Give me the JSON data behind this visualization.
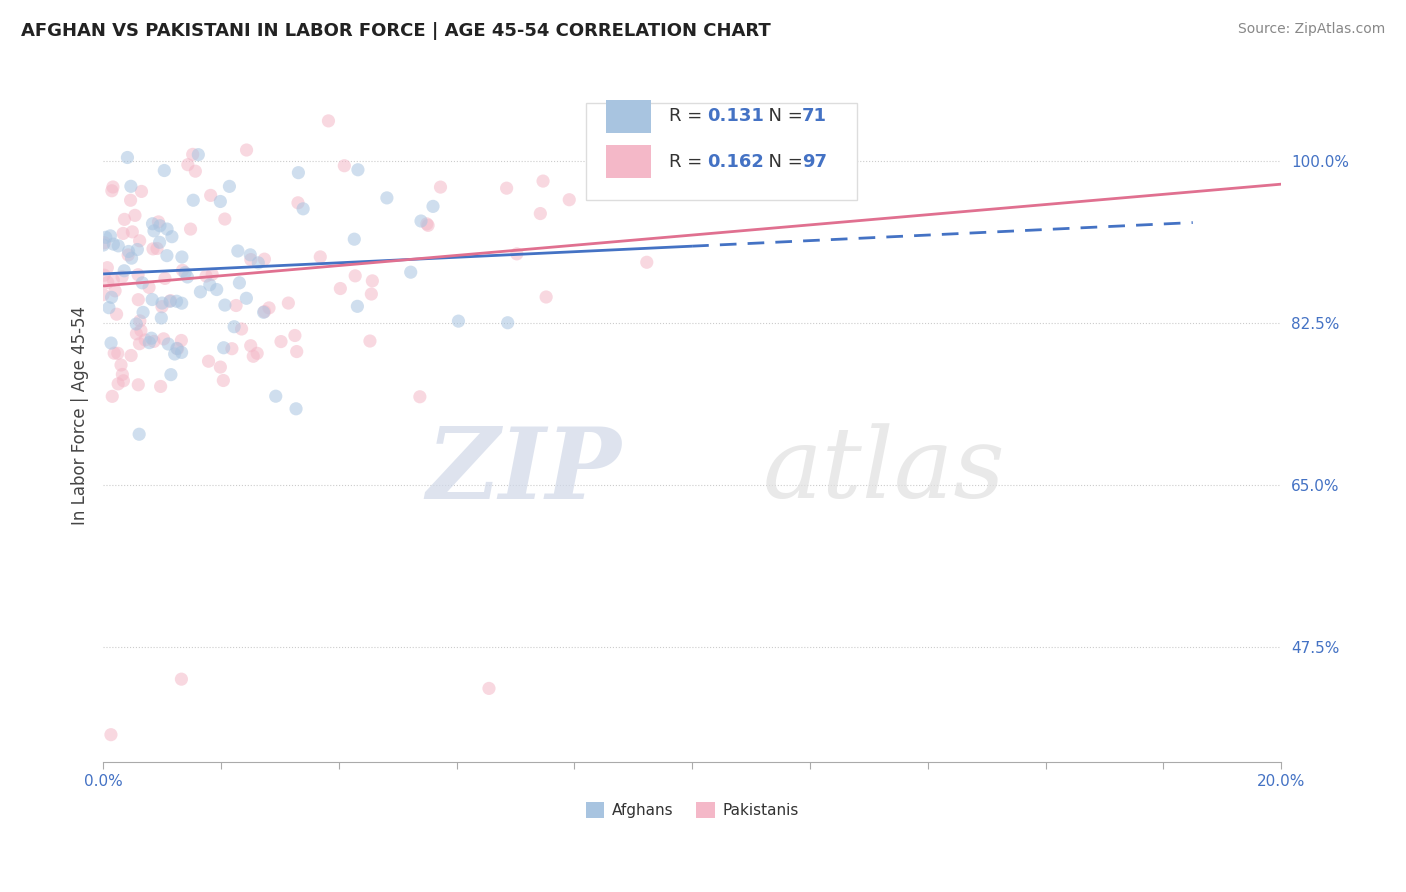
{
  "title": "AFGHAN VS PAKISTANI IN LABOR FORCE | AGE 45-54 CORRELATION CHART",
  "source": "Source: ZipAtlas.com",
  "ylabel": "In Labor Force | Age 45-54",
  "xlim": [
    0.0,
    0.2
  ],
  "ylim": [
    0.35,
    1.1
  ],
  "xticks": [
    0.0,
    0.02,
    0.04,
    0.06,
    0.08,
    0.1,
    0.12,
    0.14,
    0.16,
    0.18,
    0.2
  ],
  "xticklabels": [
    "0.0%",
    "",
    "",
    "",
    "",
    "",
    "",
    "",
    "",
    "",
    "20.0%"
  ],
  "ytick_positions": [
    0.475,
    0.65,
    0.825,
    1.0
  ],
  "ytick_labels": [
    "47.5%",
    "65.0%",
    "82.5%",
    "100.0%"
  ],
  "afghan_color": "#a8c4e0",
  "pakistani_color": "#f4b8c8",
  "afghan_line_color": "#4472c4",
  "pakistani_line_color": "#e07090",
  "legend_color_afghan": "#a8c4e0",
  "legend_color_pakistani": "#f4b8c8",
  "R_afghan": 0.131,
  "N_afghan": 71,
  "R_pakistani": 0.162,
  "N_pakistani": 97,
  "watermark_zip": "ZIP",
  "watermark_atlas": "atlas",
  "background_color": "#ffffff",
  "dot_size": 90,
  "dot_alpha": 0.55,
  "trend_y_intercept_afg": 0.878,
  "trend_slope_afg": 0.3,
  "trend_y_intercept_pak": 0.865,
  "trend_slope_pak": 0.55,
  "trend_solid_end_afg": 0.1,
  "trend_end_afg": 0.185,
  "trend_end_pak": 0.2
}
